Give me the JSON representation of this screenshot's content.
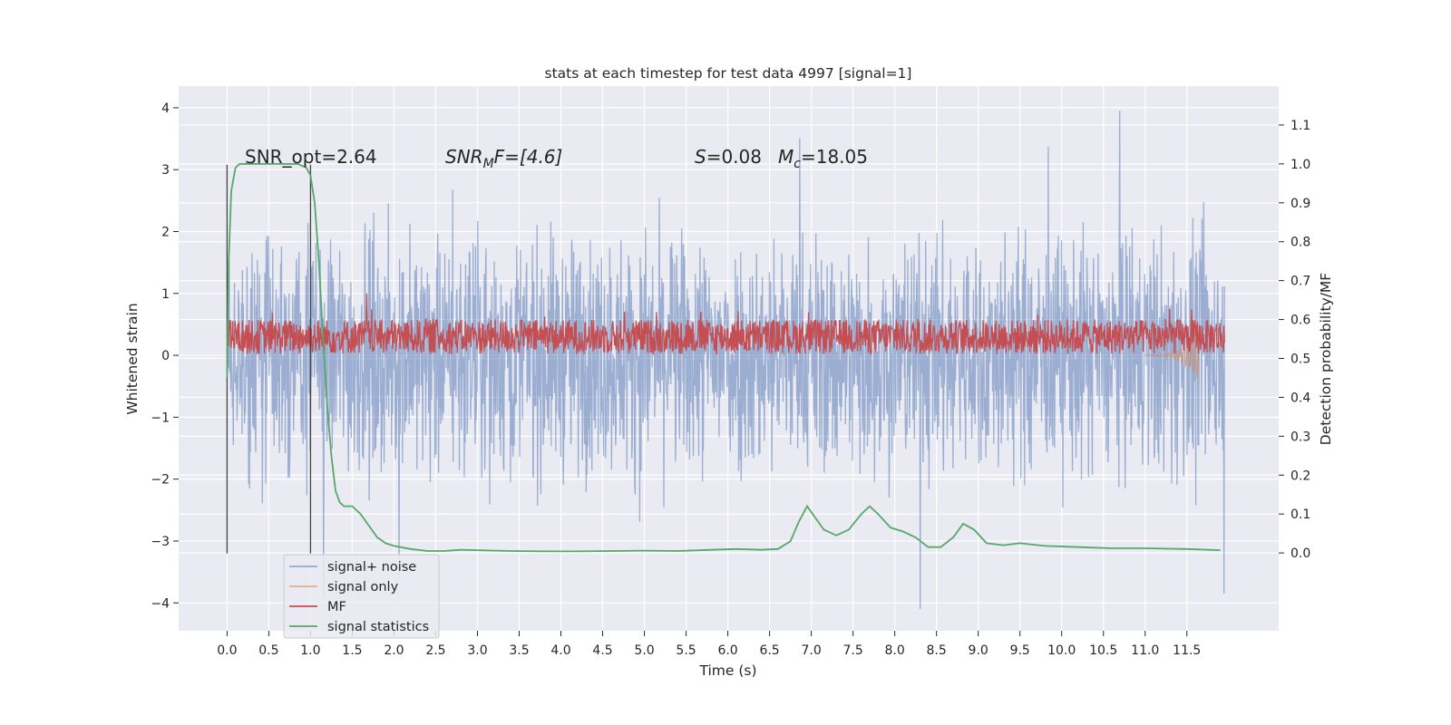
{
  "chart_data": {
    "type": "line",
    "title": "stats at each timestep for test data 4997 [signal=1]",
    "xlabel": "Time (s)",
    "ylabel_left": "Whitened strain",
    "ylabel_right": "Detection probability/MF",
    "xlim": [
      -0.58,
      12.6
    ],
    "ylim_left": [
      -4.45,
      4.35
    ],
    "ylim_right": [
      -0.2,
      1.2
    ],
    "xticks": [
      "0.0",
      "0.5",
      "1.0",
      "1.5",
      "2.0",
      "2.5",
      "3.0",
      "3.5",
      "4.0",
      "4.5",
      "5.0",
      "5.5",
      "6.0",
      "6.5",
      "7.0",
      "7.5",
      "8.0",
      "8.5",
      "9.0",
      "9.5",
      "10.0",
      "10.5",
      "11.0",
      "11.5"
    ],
    "yticks_left": [
      "−4",
      "−3",
      "−2",
      "−1",
      "0",
      "1",
      "2",
      "3",
      "4"
    ],
    "yticks_right": [
      "0.0",
      "0.1",
      "0.2",
      "0.3",
      "0.4",
      "0.5",
      "0.6",
      "0.7",
      "0.8",
      "0.9",
      "1.0",
      "1.1"
    ],
    "grid": true,
    "legend_position": "lower-left",
    "annotations": {
      "snr_opt": "SNR_opt=2.64",
      "snr_mf_base": "SNR",
      "snr_mf_sub": "M",
      "snr_mf_rest": "F=[4.6]",
      "s_var": "S",
      "s_rest": "=0.08",
      "mc_var": "M",
      "mc_sub": "c",
      "mc_rest": "=18.05"
    },
    "vertical_lines_x": [
      0.0,
      1.0
    ],
    "vertical_lines_span": [
      -3.2,
      3.08
    ],
    "series": [
      {
        "name": "signal+ noise",
        "color": "#4c72b0",
        "axis": "left",
        "description_only": false,
        "x_range": [
          0.0,
          11.95
        ],
        "typical_band": [
          -1.6,
          1.6
        ],
        "peak_max": 3.95,
        "peak_min": -4.1
      },
      {
        "name": "signal only",
        "color": "#dd8452",
        "axis": "left",
        "x_range": [
          11.0,
          11.65
        ],
        "min_value": -0.4
      },
      {
        "name": "MF",
        "color": "#c44e52",
        "axis": "left",
        "x_range": [
          0.0,
          11.95
        ],
        "typical_band": [
          0.0,
          0.6
        ],
        "peak_max": 1.0
      },
      {
        "name": "signal statistics",
        "color": "#55a868",
        "axis": "right",
        "x": [
          0.0,
          0.02,
          0.05,
          0.1,
          0.15,
          0.2,
          0.3,
          0.5,
          0.7,
          0.85,
          0.95,
          1.0,
          1.05,
          1.1,
          1.15,
          1.2,
          1.25,
          1.3,
          1.35,
          1.4,
          1.5,
          1.6,
          1.7,
          1.8,
          1.9,
          2.0,
          2.2,
          2.4,
          2.6,
          2.8,
          3.0,
          3.4,
          3.8,
          4.2,
          4.6,
          5.0,
          5.4,
          5.8,
          6.1,
          6.4,
          6.6,
          6.75,
          6.85,
          6.95,
          7.05,
          7.15,
          7.3,
          7.45,
          7.6,
          7.7,
          7.8,
          7.95,
          8.1,
          8.25,
          8.4,
          8.55,
          8.7,
          8.82,
          8.95,
          9.1,
          9.3,
          9.5,
          9.8,
          10.2,
          10.6,
          11.0,
          11.5,
          11.9
        ],
        "y": [
          0.45,
          0.75,
          0.93,
          0.99,
          1.0,
          1.0,
          1.0,
          1.0,
          1.0,
          1.0,
          0.99,
          0.97,
          0.9,
          0.75,
          0.55,
          0.38,
          0.25,
          0.16,
          0.13,
          0.12,
          0.12,
          0.1,
          0.07,
          0.04,
          0.025,
          0.018,
          0.01,
          0.005,
          0.005,
          0.008,
          0.007,
          0.005,
          0.004,
          0.004,
          0.005,
          0.006,
          0.005,
          0.008,
          0.01,
          0.008,
          0.01,
          0.03,
          0.08,
          0.12,
          0.09,
          0.06,
          0.045,
          0.06,
          0.1,
          0.12,
          0.1,
          0.065,
          0.055,
          0.04,
          0.015,
          0.015,
          0.04,
          0.075,
          0.06,
          0.025,
          0.02,
          0.025,
          0.018,
          0.015,
          0.012,
          0.012,
          0.01,
          0.007
        ]
      }
    ]
  }
}
